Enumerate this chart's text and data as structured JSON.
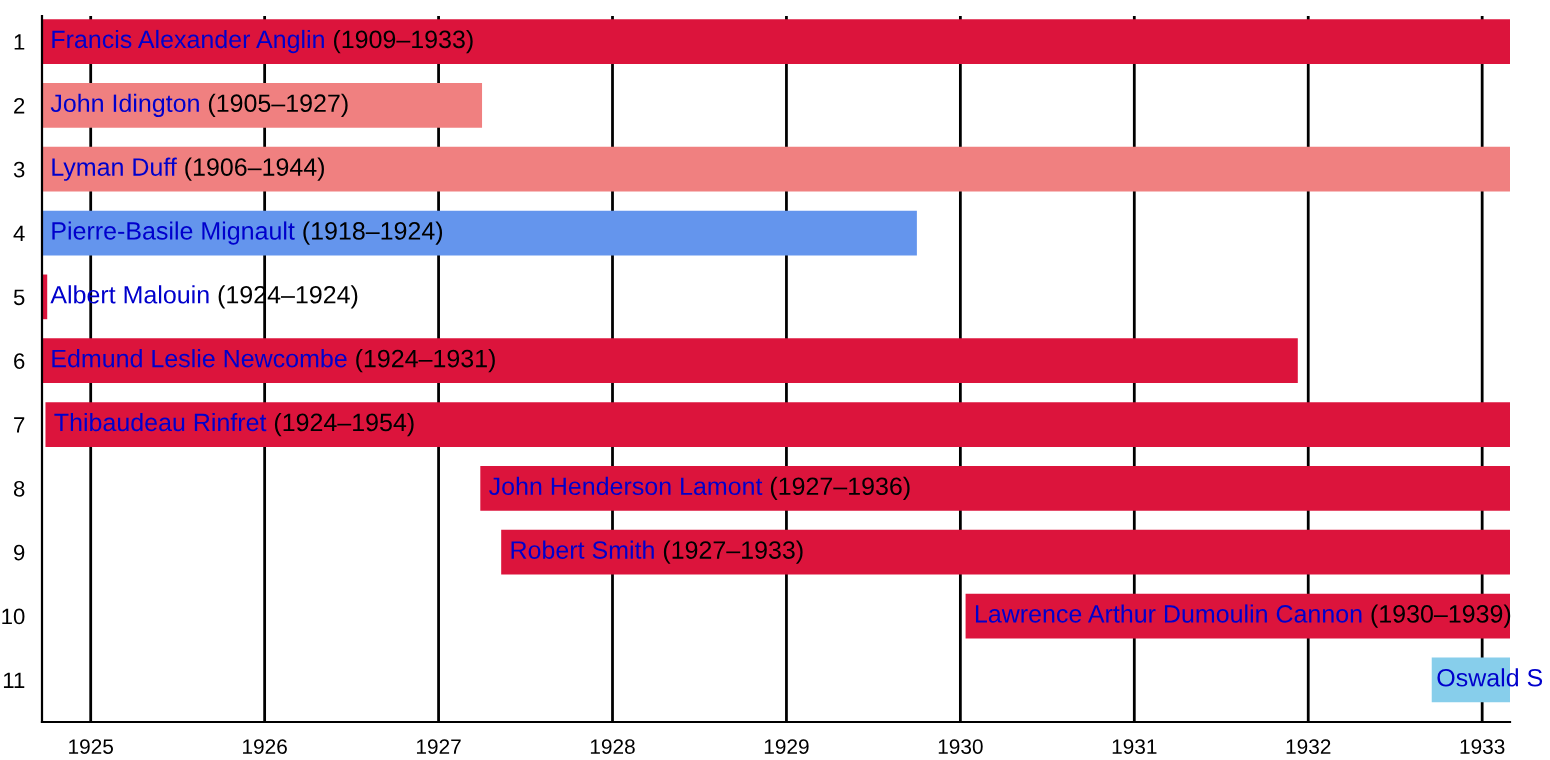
{
  "chart_data": {
    "type": "bar",
    "orientation": "horizontal",
    "categories": [
      "1",
      "2",
      "3",
      "4",
      "5",
      "6",
      "7",
      "8",
      "9",
      "10",
      "11"
    ],
    "base": [
      1924.72,
      1924.72,
      1924.72,
      1924.72,
      1924.72,
      1924.72,
      1924.74,
      1927.24,
      1927.36,
      1930.03,
      1932.71
    ],
    "values": [
      8.44,
      2.53,
      8.44,
      5.03,
      0.03,
      7.22,
      8.42,
      5.92,
      5.8,
      3.13,
      0.45
    ],
    "colors": [
      "#dc143c",
      "#f08080",
      "#f08080",
      "#6495ed",
      "#dc143c",
      "#dc143c",
      "#dc143c",
      "#dc143c",
      "#dc143c",
      "#dc143c",
      "#87ceeb"
    ],
    "value_labels": [
      "Francis Alexander Anglin (1909–1933)",
      "John Idington (1905–1927)",
      "Lyman Duff (1906–1944)",
      "Pierre-Basile Mignault (1918–1924)",
      "Albert Malouin (1924–1924)",
      "Edmund Leslie Newcombe (1924–1931)",
      "Thibaudeau Rinfret (1924–1954)",
      "John Henderson Lamont (1927–1936)",
      "Robert Smith (1927–1933)",
      "Lawrence Arthur Dumoulin Cannon (1930–1939)",
      "Oswald S"
    ],
    "xlim": [
      1924.72,
      1933.16
    ],
    "xticks": [
      1925,
      1926,
      1927,
      1928,
      1929,
      1930,
      1931,
      1932,
      1933
    ],
    "grid": "x"
  }
}
